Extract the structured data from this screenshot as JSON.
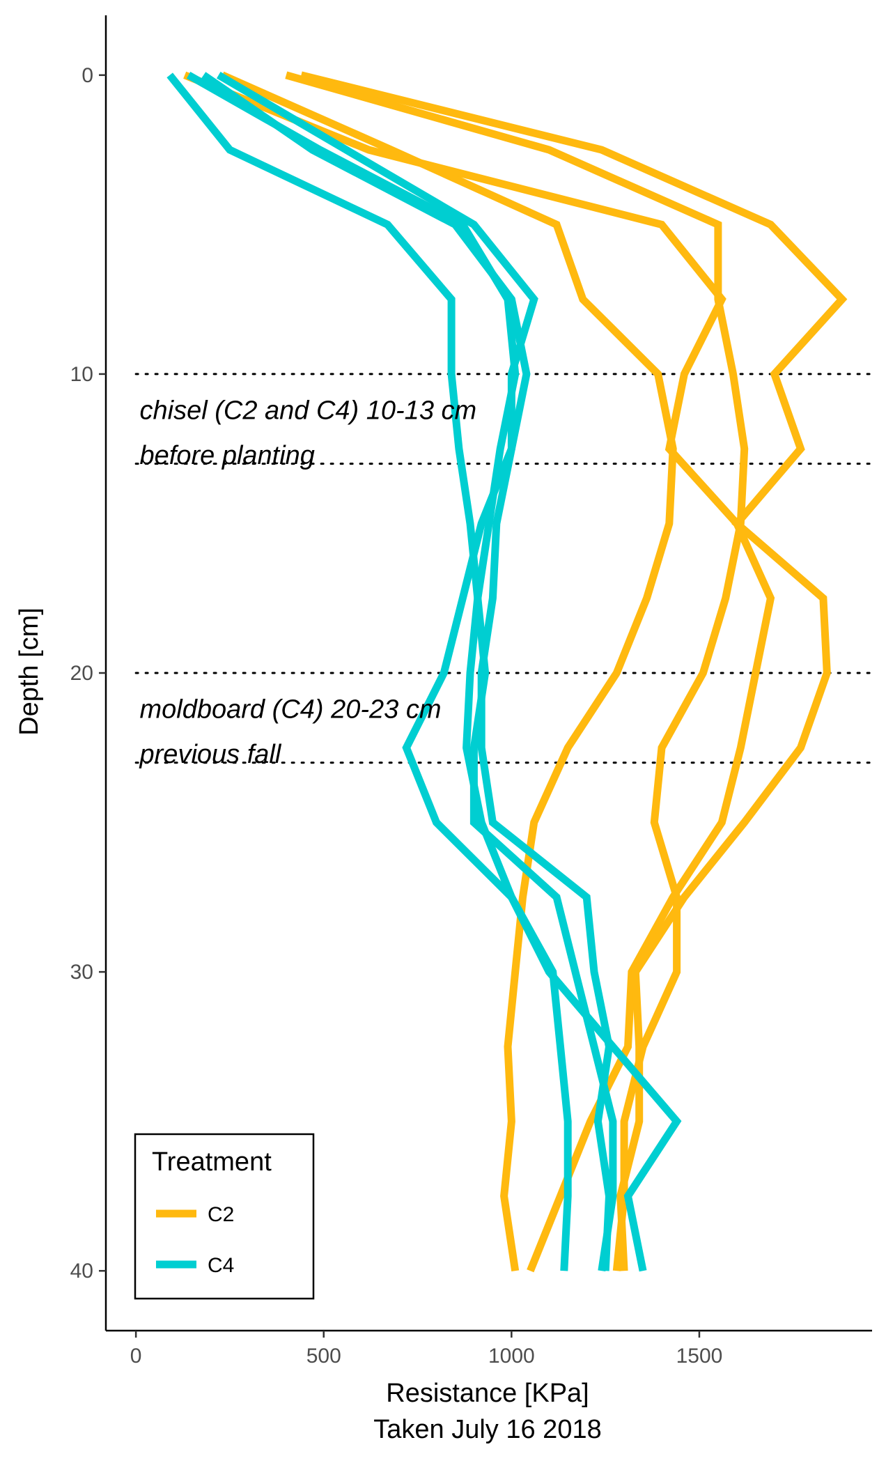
{
  "chart_data": {
    "type": "line",
    "orientation": "depth-profile",
    "xlabel": "Resistance [KPa]",
    "xlabel_sub": "Taken July 16 2018",
    "ylabel": "Depth [cm]",
    "xlim": [
      -80,
      1960
    ],
    "ylim": [
      -2,
      42
    ],
    "y_reversed": true,
    "x_ticks": [
      0,
      500,
      1000,
      1500
    ],
    "y_ticks": [
      0,
      10,
      20,
      30,
      40
    ],
    "grid": false,
    "legend": {
      "title": "Treatment",
      "position": "bottom-left",
      "entries": [
        {
          "label": "C2",
          "color": "#FFB90F"
        },
        {
          "label": "C4",
          "color": "#00CED1"
        }
      ]
    },
    "reference_lines": [
      {
        "depth": 10,
        "style": "dotted"
      },
      {
        "depth": 13,
        "style": "dotted"
      },
      {
        "depth": 20,
        "style": "dotted"
      },
      {
        "depth": 23,
        "style": "dotted"
      }
    ],
    "annotations": [
      {
        "text": "chisel (C2 and C4) 10-13 cm",
        "x": 10,
        "depth": 11.2
      },
      {
        "text": "before planting",
        "x": 10,
        "depth": 12.7
      },
      {
        "text": "moldboard (C4) 20-23 cm",
        "x": 10,
        "depth": 21.2
      },
      {
        "text": "previous fall",
        "x": 10,
        "depth": 22.7
      }
    ],
    "depths": [
      0,
      2.5,
      5,
      7.5,
      10,
      12.5,
      15,
      17.5,
      20,
      22.5,
      25,
      27.5,
      30,
      32.5,
      35,
      37.5,
      40
    ],
    "series": [
      {
        "group": "C2",
        "values": [
          230,
          680,
          1120,
          1190,
          1390,
          1430,
          1420,
          1360,
          1280,
          1150,
          1060,
          1030,
          1010,
          990,
          1000,
          980,
          1010
        ]
      },
      {
        "group": "C2",
        "values": [
          130,
          620,
          1400,
          1560,
          1460,
          1420,
          1600,
          1690,
          1650,
          1610,
          1560,
          1430,
          1320,
          1310,
          1210,
          1130,
          1050
        ]
      },
      {
        "group": "C2",
        "values": [
          400,
          1100,
          1550,
          1550,
          1590,
          1620,
          1610,
          1570,
          1510,
          1400,
          1380,
          1440,
          1440,
          1350,
          1300,
          1300,
          1280
        ]
      },
      {
        "group": "C2",
        "values": [
          440,
          1240,
          1690,
          1880,
          1700,
          1770,
          1600,
          1830,
          1840,
          1770,
          1620,
          1460,
          1330,
          1340,
          1340,
          1290,
          1300
        ]
      },
      {
        "group": "C4",
        "values": [
          90,
          250,
          670,
          840,
          840,
          860,
          890,
          910,
          930,
          900,
          900,
          1120,
          1170,
          1220,
          1270,
          1270,
          1240
        ]
      },
      {
        "group": "C4",
        "values": [
          180,
          470,
          850,
          1000,
          1040,
          1000,
          920,
          870,
          820,
          720,
          800,
          1000,
          1110,
          1130,
          1150,
          1150,
          1140
        ]
      },
      {
        "group": "C4",
        "values": [
          140,
          490,
          870,
          990,
          1010,
          970,
          940,
          910,
          890,
          880,
          920,
          1000,
          1100,
          1270,
          1440,
          1310,
          1350
        ]
      },
      {
        "group": "C4",
        "values": [
          220,
          560,
          900,
          1060,
          1000,
          1000,
          960,
          950,
          920,
          920,
          950,
          1200,
          1220,
          1260,
          1230,
          1260,
          1250
        ]
      }
    ]
  }
}
